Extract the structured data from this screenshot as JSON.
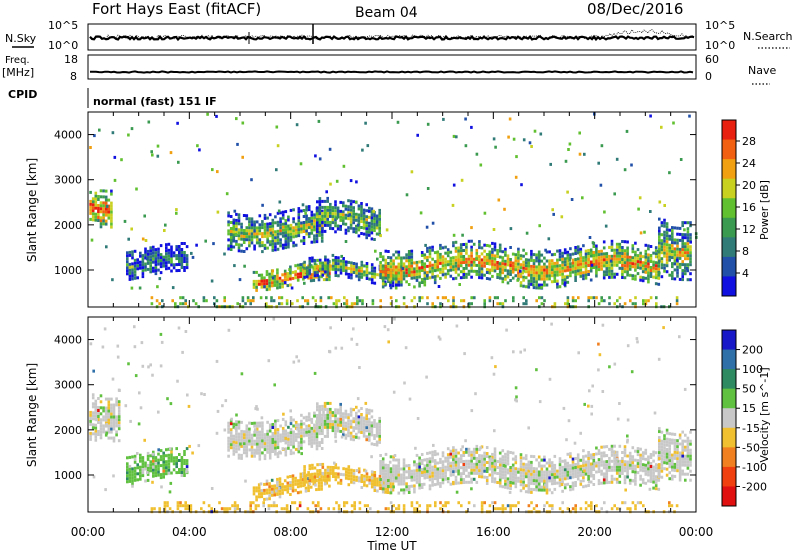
{
  "header": {
    "radar": "Fort Hays East (fitACF)",
    "beam": "Beam 04",
    "date": "08/Dec/2016"
  },
  "top_panels": {
    "nsky_label": "N.Sky",
    "nsky_ticks": [
      "10^5",
      "10^0"
    ],
    "nsearch_label": "N.Search",
    "nsearch_ticks": [
      "10^5",
      "10^0"
    ],
    "freq_label": "Freq.",
    "freq_unit": "[MHz]",
    "freq_ticks": [
      "18",
      "8"
    ],
    "nave_label": "Nave",
    "nave_ticks": [
      "60",
      "0"
    ],
    "cpid_label": "CPID",
    "cpid_text": "normal (fast) 151 IF"
  },
  "chart_data": [
    {
      "type": "heatmap",
      "name": "power-panel",
      "title": "",
      "xlabel": "Time UT",
      "ylabel": "Slant Range [km]",
      "xlim_hours": [
        0,
        24
      ],
      "ylim_km": [
        180,
        4500
      ],
      "yticks": [
        1000,
        2000,
        3000,
        4000
      ],
      "colorbar": {
        "label": "Power [dB]",
        "ticks": [
          "4",
          "8",
          "12",
          "16",
          "20",
          "24",
          "28"
        ],
        "colors": [
          "#1010e0",
          "#2050a8",
          "#307a78",
          "#3a9a50",
          "#60c030",
          "#c8d020",
          "#f0a010",
          "#f06010",
          "#e82010"
        ]
      },
      "regions": [
        {
          "t0": 0.05,
          "t1": 0.9,
          "r0": 2050,
          "r1": 2900,
          "level": 0.85
        },
        {
          "t0": 1.5,
          "t1": 3.9,
          "r0": 850,
          "r1": 1500,
          "level": 0.35
        },
        {
          "t0": 5.5,
          "t1": 9.2,
          "r0": 1500,
          "r1": 2350,
          "level": 0.55
        },
        {
          "t0": 6.5,
          "t1": 9.5,
          "r0": 650,
          "r1": 1100,
          "level": 0.8
        },
        {
          "t0": 8.5,
          "t1": 12.0,
          "r0": 800,
          "r1": 1200,
          "level": 0.55
        },
        {
          "t0": 9.0,
          "t1": 11.5,
          "r0": 1750,
          "r1": 2500,
          "level": 0.5
        },
        {
          "t0": 11.5,
          "t1": 22.5,
          "r0": 700,
          "r1": 1550,
          "level": 0.7
        },
        {
          "t0": 22.5,
          "t1": 23.8,
          "r0": 900,
          "r1": 2200,
          "level": 0.6
        }
      ],
      "ground_band": {
        "r0": 200,
        "r1": 420,
        "level": 0.5
      }
    },
    {
      "type": "heatmap",
      "name": "velocity-panel",
      "title": "",
      "xlabel": "Time UT",
      "ylabel": "Slant Range [km]",
      "xlim_hours": [
        0,
        24
      ],
      "ylim_km": [
        180,
        4500
      ],
      "yticks": [
        1000,
        2000,
        3000,
        4000
      ],
      "xticks": [
        "00:00",
        "04:00",
        "08:00",
        "12:00",
        "16:00",
        "20:00",
        "00:00"
      ],
      "colorbar": {
        "label": "Velocity [m s^-1]",
        "ticks": [
          "200",
          "100",
          "50",
          "15",
          "-15",
          "-50",
          "-100",
          "-200"
        ],
        "colors": [
          "#1818c8",
          "#3070a8",
          "#2e8a60",
          "#60c040",
          "#c8c8c8",
          "#f0c030",
          "#f08020",
          "#f04010",
          "#e01010"
        ]
      },
      "regions": [
        {
          "t0": 0.05,
          "t1": 1.2,
          "r0": 1900,
          "r1": 2900,
          "level": 4
        },
        {
          "t0": 1.5,
          "t1": 3.9,
          "r0": 900,
          "r1": 1500,
          "level": 3
        },
        {
          "t0": 5.5,
          "t1": 9.2,
          "r0": 1500,
          "r1": 2300,
          "level": 4
        },
        {
          "t0": 6.5,
          "t1": 9.5,
          "r0": 600,
          "r1": 1000,
          "level": 5
        },
        {
          "t0": 8.5,
          "t1": 12.0,
          "r0": 750,
          "r1": 1150,
          "level": 5
        },
        {
          "t0": 9.0,
          "t1": 11.5,
          "r0": 1750,
          "r1": 2500,
          "level": 4
        },
        {
          "t0": 11.5,
          "t1": 22.5,
          "r0": 700,
          "r1": 1550,
          "level": 4
        },
        {
          "t0": 22.5,
          "t1": 23.8,
          "r0": 1000,
          "r1": 2100,
          "level": 4
        }
      ],
      "ground_band": {
        "r0": 200,
        "r1": 420,
        "level": 5
      }
    }
  ]
}
